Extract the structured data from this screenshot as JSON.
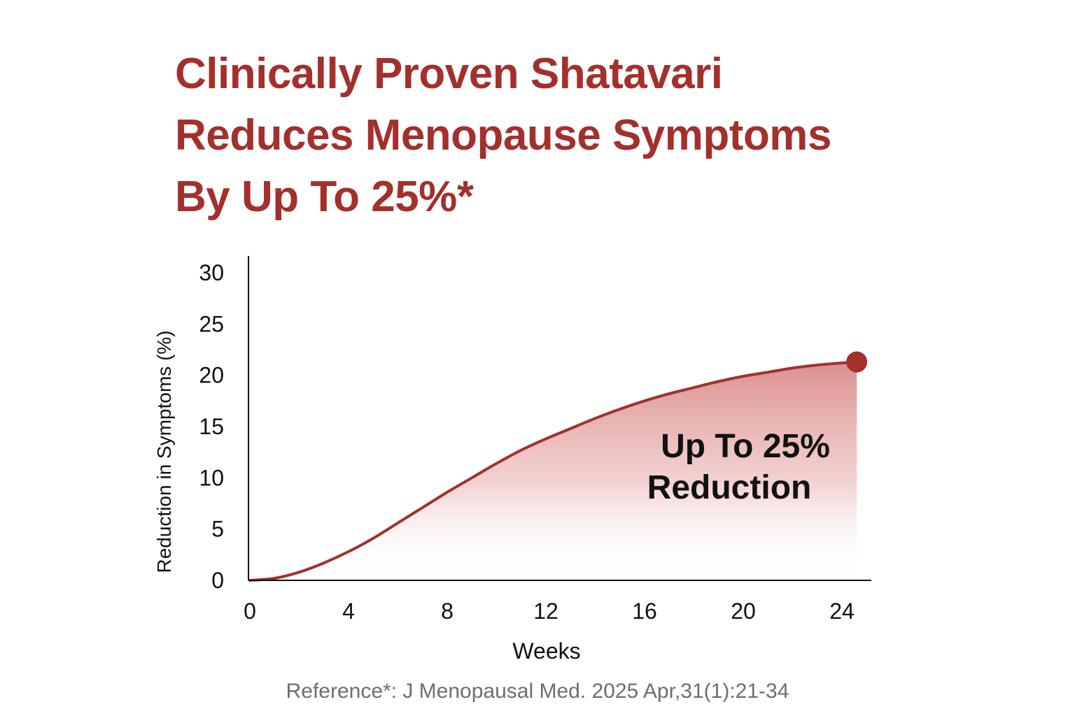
{
  "headline": {
    "line1": "Clinically Proven Shatavari",
    "line2": "Reduces Menopause Symptoms",
    "line3": "By Up To 25%*"
  },
  "colors": {
    "accent": "#a3302c",
    "axis": "#111111",
    "reference_text": "#6e6e6e"
  },
  "chart_data": {
    "type": "area",
    "title": "Clinically Proven Shatavari Reduces Menopause Symptoms By Up To 25%*",
    "xlabel": "Weeks",
    "ylabel": "Reduction in Symptoms (%)",
    "xlim": [
      0,
      24
    ],
    "ylim": [
      0,
      30
    ],
    "xticks": [
      0,
      4,
      8,
      12,
      16,
      20,
      24
    ],
    "yticks": [
      0,
      5,
      10,
      15,
      20,
      25,
      30
    ],
    "grid": false,
    "series": [
      {
        "name": "Shatavari",
        "x": [
          0,
          1,
          2,
          3,
          4,
          5,
          6,
          7,
          8,
          9,
          10,
          11,
          12,
          13,
          14,
          15,
          16,
          17,
          18,
          19,
          20,
          21,
          22,
          23,
          24,
          24.6
        ],
        "values": [
          0,
          0.2,
          0.8,
          1.7,
          2.8,
          4.1,
          5.6,
          7.1,
          8.6,
          10.0,
          11.4,
          12.7,
          13.8,
          14.8,
          15.8,
          16.7,
          17.5,
          18.2,
          18.8,
          19.4,
          19.9,
          20.3,
          20.7,
          21.0,
          21.2,
          21.3
        ]
      }
    ],
    "endpoint": {
      "x": 24.6,
      "y": 21.3
    },
    "annotation": {
      "line1": "Up To 25%",
      "line2": "Reduction"
    }
  },
  "reference": "Reference*: J Menopausal Med. 2025 Apr,31(1):21-34"
}
